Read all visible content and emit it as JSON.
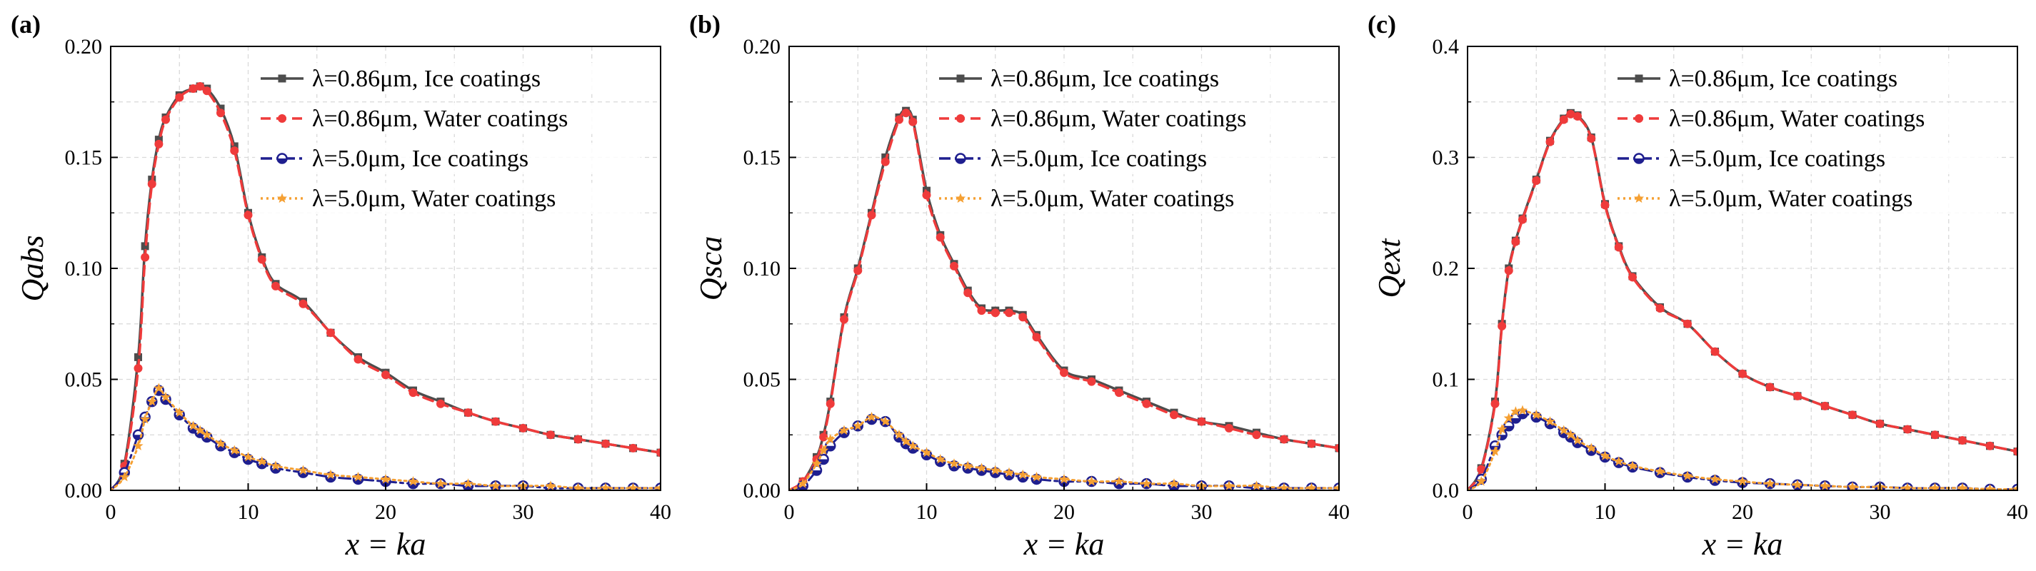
{
  "panels": [
    {
      "label": "(a)",
      "ylabel": "Qabs",
      "xlabel": "x = ka",
      "yticks": [
        "0.00",
        "0.05",
        "0.10",
        "0.15",
        "0.20"
      ],
      "xticks": [
        "0",
        "10",
        "20",
        "30",
        "40"
      ],
      "legend": [
        "λ=0.86μm, Ice coatings",
        "λ=0.86μm, Water coatings",
        "λ=5.0μm, Ice coatings",
        "λ=5.0μm, Water coatings"
      ]
    },
    {
      "label": "(b)",
      "ylabel": "Qsca",
      "xlabel": "x = ka",
      "yticks": [
        "0.00",
        "0.05",
        "0.10",
        "0.15",
        "0.20"
      ],
      "xticks": [
        "0",
        "10",
        "20",
        "30",
        "40"
      ],
      "legend": [
        "λ=0.86μm, Ice coatings",
        "λ=0.86μm, Water coatings",
        "λ=5.0μm, Ice coatings",
        "λ=5.0μm, Water coatings"
      ]
    },
    {
      "label": "(c)",
      "ylabel": "Qext",
      "xlabel": "x = ka",
      "yticks": [
        "0.0",
        "0.1",
        "0.2",
        "0.3",
        "0.4"
      ],
      "xticks": [
        "0",
        "10",
        "20",
        "30",
        "40"
      ],
      "legend": [
        "λ=0.86μm, Ice coatings",
        "λ=0.86μm, Water coatings",
        "λ=5.0μm, Ice coatings",
        "λ=5.0μm, Water coatings"
      ]
    }
  ],
  "series_style": [
    {
      "name": "λ=0.86μm, Ice coatings",
      "color": "#4d4d4d",
      "dash": "solid",
      "marker": "square"
    },
    {
      "name": "λ=0.86μm, Water coatings",
      "color": "#ef3b3b",
      "dash": "dashed",
      "marker": "circle"
    },
    {
      "name": "λ=5.0μm, Ice coatings",
      "color": "#1f1f8f",
      "dash": "dashdot",
      "marker": "half-circle"
    },
    {
      "name": "λ=5.0μm, Water coatings",
      "color": "#f5a033",
      "dash": "dotted",
      "marker": "star"
    }
  ],
  "chart_data": [
    {
      "type": "line",
      "title": "(a)",
      "xlabel": "x = ka",
      "ylabel": "Qabs",
      "xlim": [
        0,
        40
      ],
      "ylim": [
        0,
        0.2
      ],
      "grid": true,
      "legend_position": "top-right",
      "x": [
        0,
        1,
        2,
        2.5,
        3,
        3.5,
        4,
        5,
        6,
        6.5,
        7,
        8,
        9,
        10,
        11,
        12,
        14,
        16,
        18,
        20,
        22,
        24,
        26,
        28,
        30,
        32,
        34,
        36,
        38,
        40
      ],
      "series": [
        {
          "name": "λ=0.86μm, Ice coatings",
          "values": [
            0.0,
            0.012,
            0.06,
            0.11,
            0.14,
            0.158,
            0.168,
            0.178,
            0.181,
            0.182,
            0.181,
            0.172,
            0.155,
            0.125,
            0.105,
            0.093,
            0.085,
            0.071,
            0.06,
            0.053,
            0.045,
            0.04,
            0.035,
            0.031,
            0.028,
            0.025,
            0.023,
            0.021,
            0.019,
            0.017
          ]
        },
        {
          "name": "λ=0.86μm, Water coatings",
          "values": [
            0.0,
            0.011,
            0.055,
            0.105,
            0.138,
            0.156,
            0.167,
            0.177,
            0.181,
            0.182,
            0.18,
            0.17,
            0.153,
            0.124,
            0.104,
            0.092,
            0.084,
            0.071,
            0.059,
            0.052,
            0.044,
            0.039,
            0.035,
            0.031,
            0.028,
            0.025,
            0.023,
            0.021,
            0.019,
            0.017
          ]
        },
        {
          "name": "λ=5.0μm, Ice coatings",
          "values": [
            0.0,
            0.008,
            0.025,
            0.033,
            0.04,
            0.045,
            0.041,
            0.034,
            0.028,
            0.026,
            0.024,
            0.02,
            0.017,
            0.014,
            0.012,
            0.01,
            0.008,
            0.006,
            0.005,
            0.004,
            0.003,
            0.003,
            0.002,
            0.002,
            0.002,
            0.001,
            0.001,
            0.001,
            0.001,
            0.001
          ]
        },
        {
          "name": "λ=5.0μm, Water coatings",
          "values": [
            0.0,
            0.006,
            0.02,
            0.032,
            0.04,
            0.046,
            0.042,
            0.035,
            0.029,
            0.027,
            0.025,
            0.021,
            0.018,
            0.015,
            0.013,
            0.011,
            0.009,
            0.007,
            0.006,
            0.005,
            0.004,
            0.003,
            0.003,
            0.002,
            0.002,
            0.002,
            0.001,
            0.001,
            0.001,
            0.001
          ]
        }
      ]
    },
    {
      "type": "line",
      "title": "(b)",
      "xlabel": "x = ka",
      "ylabel": "Qsca",
      "xlim": [
        0,
        40
      ],
      "ylim": [
        0,
        0.2
      ],
      "grid": true,
      "legend_position": "top-right",
      "x": [
        0,
        1,
        2,
        2.5,
        3,
        4,
        5,
        6,
        7,
        8,
        8.5,
        9,
        10,
        11,
        12,
        13,
        14,
        15,
        16,
        17,
        18,
        20,
        22,
        24,
        26,
        28,
        30,
        32,
        34,
        36,
        38,
        40
      ],
      "series": [
        {
          "name": "λ=0.86μm, Ice coatings",
          "values": [
            0.0,
            0.004,
            0.015,
            0.025,
            0.04,
            0.078,
            0.1,
            0.125,
            0.15,
            0.168,
            0.171,
            0.167,
            0.135,
            0.115,
            0.102,
            0.09,
            0.082,
            0.081,
            0.081,
            0.079,
            0.07,
            0.054,
            0.05,
            0.045,
            0.04,
            0.035,
            0.031,
            0.029,
            0.026,
            0.023,
            0.021,
            0.019
          ]
        },
        {
          "name": "λ=0.86μm, Water coatings",
          "values": [
            0.0,
            0.004,
            0.014,
            0.024,
            0.039,
            0.077,
            0.099,
            0.124,
            0.148,
            0.167,
            0.17,
            0.166,
            0.133,
            0.114,
            0.101,
            0.089,
            0.081,
            0.08,
            0.08,
            0.078,
            0.069,
            0.053,
            0.049,
            0.044,
            0.039,
            0.034,
            0.031,
            0.028,
            0.025,
            0.023,
            0.021,
            0.019
          ]
        },
        {
          "name": "λ=5.0μm, Ice coatings",
          "values": [
            0.0,
            0.002,
            0.009,
            0.014,
            0.02,
            0.026,
            0.029,
            0.032,
            0.031,
            0.024,
            0.021,
            0.019,
            0.016,
            0.013,
            0.011,
            0.01,
            0.009,
            0.008,
            0.007,
            0.006,
            0.005,
            0.004,
            0.004,
            0.003,
            0.003,
            0.002,
            0.002,
            0.002,
            0.001,
            0.001,
            0.001,
            0.001
          ]
        },
        {
          "name": "λ=5.0μm, Water coatings",
          "values": [
            0.0,
            0.003,
            0.012,
            0.018,
            0.023,
            0.027,
            0.029,
            0.033,
            0.031,
            0.025,
            0.022,
            0.02,
            0.017,
            0.014,
            0.012,
            0.011,
            0.01,
            0.009,
            0.008,
            0.007,
            0.006,
            0.005,
            0.004,
            0.004,
            0.003,
            0.003,
            0.002,
            0.002,
            0.002,
            0.001,
            0.001,
            0.001
          ]
        }
      ]
    },
    {
      "type": "line",
      "title": "(c)",
      "xlabel": "x = ka",
      "ylabel": "Qext",
      "xlim": [
        0,
        40
      ],
      "ylim": [
        0,
        0.4
      ],
      "grid": true,
      "legend_position": "top-right",
      "x": [
        0,
        1,
        2,
        2.5,
        3,
        3.5,
        4,
        5,
        6,
        7,
        7.5,
        8,
        9,
        10,
        11,
        12,
        14,
        16,
        18,
        20,
        22,
        24,
        26,
        28,
        30,
        32,
        34,
        36,
        38,
        40
      ],
      "series": [
        {
          "name": "λ=0.86μm, Ice coatings",
          "values": [
            0.0,
            0.02,
            0.08,
            0.15,
            0.2,
            0.225,
            0.245,
            0.28,
            0.315,
            0.335,
            0.34,
            0.338,
            0.318,
            0.258,
            0.22,
            0.193,
            0.165,
            0.15,
            0.125,
            0.105,
            0.093,
            0.085,
            0.076,
            0.068,
            0.06,
            0.055,
            0.05,
            0.045,
            0.04,
            0.035
          ]
        },
        {
          "name": "λ=0.86μm, Water coatings",
          "values": [
            0.0,
            0.019,
            0.078,
            0.148,
            0.198,
            0.224,
            0.244,
            0.279,
            0.314,
            0.334,
            0.339,
            0.337,
            0.317,
            0.257,
            0.219,
            0.192,
            0.164,
            0.15,
            0.125,
            0.105,
            0.093,
            0.085,
            0.076,
            0.068,
            0.06,
            0.055,
            0.05,
            0.045,
            0.04,
            0.035
          ]
        },
        {
          "name": "λ=5.0μm, Ice coatings",
          "values": [
            0.0,
            0.01,
            0.04,
            0.05,
            0.058,
            0.065,
            0.069,
            0.066,
            0.06,
            0.052,
            0.048,
            0.043,
            0.036,
            0.03,
            0.025,
            0.021,
            0.016,
            0.012,
            0.009,
            0.007,
            0.006,
            0.005,
            0.004,
            0.003,
            0.003,
            0.002,
            0.002,
            0.002,
            0.001,
            0.001
          ]
        },
        {
          "name": "λ=5.0μm, Water coatings",
          "values": [
            0.0,
            0.008,
            0.035,
            0.055,
            0.065,
            0.071,
            0.072,
            0.068,
            0.062,
            0.054,
            0.05,
            0.045,
            0.038,
            0.031,
            0.026,
            0.022,
            0.017,
            0.013,
            0.01,
            0.008,
            0.006,
            0.005,
            0.004,
            0.003,
            0.003,
            0.002,
            0.002,
            0.002,
            0.001,
            0.001
          ]
        }
      ]
    }
  ]
}
